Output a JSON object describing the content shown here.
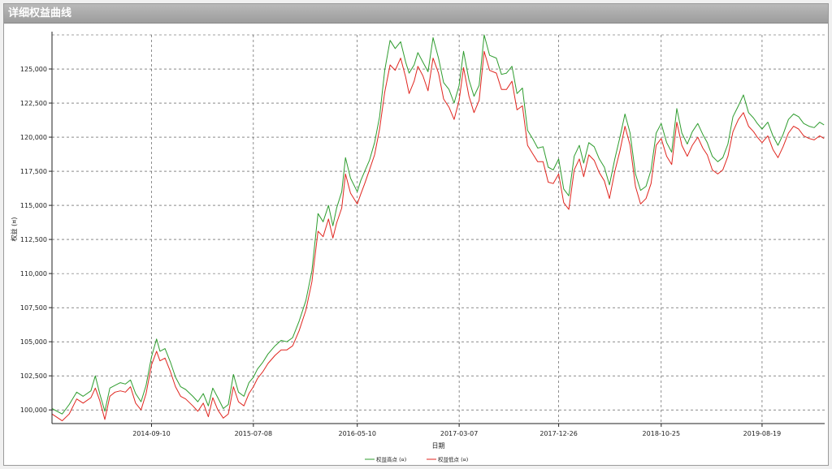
{
  "window": {
    "title": "详细权益曲线"
  },
  "chart_data": {
    "type": "line",
    "title": "",
    "xlabel": "日期",
    "ylabel": "权益 (¤)",
    "x_ticks": [
      "2014-09-10",
      "2015-07-08",
      "2016-05-10",
      "2017-03-07",
      "2017-12-26",
      "2018-10-25",
      "2019-08-19"
    ],
    "x_range": [
      "2013-11-20",
      "2020-02-20"
    ],
    "ylim": [
      99000,
      127500
    ],
    "y_ticks": [
      100000,
      102500,
      105000,
      107500,
      110000,
      112500,
      115000,
      117500,
      120000,
      122500,
      125000
    ],
    "y_tick_labels": [
      "100,000",
      "102,500",
      "105,000",
      "107,500",
      "110,000",
      "112,500",
      "115,000",
      "117,500",
      "120,000",
      "122,500",
      "125,000"
    ],
    "grid": true,
    "legend_position": "bottom-center",
    "series": [
      {
        "name": "权益高点 (¤)",
        "color": "#2e9c2e",
        "x": [
          "2013-11-20",
          "2013-12-20",
          "2014-01-10",
          "2014-02-01",
          "2014-02-20",
          "2014-03-15",
          "2014-03-28",
          "2014-04-10",
          "2014-04-25",
          "2014-05-10",
          "2014-05-25",
          "2014-06-10",
          "2014-06-25",
          "2014-07-10",
          "2014-07-25",
          "2014-08-10",
          "2014-08-25",
          "2014-09-10",
          "2014-09-25",
          "2014-10-05",
          "2014-10-20",
          "2014-11-05",
          "2014-11-20",
          "2014-12-05",
          "2014-12-20",
          "2015-01-10",
          "2015-01-25",
          "2015-02-10",
          "2015-02-25",
          "2015-03-10",
          "2015-03-25",
          "2015-04-10",
          "2015-04-25",
          "2015-05-10",
          "2015-05-25",
          "2015-06-10",
          "2015-06-25",
          "2015-07-08",
          "2015-07-20",
          "2015-08-05",
          "2015-08-20",
          "2015-09-10",
          "2015-09-28",
          "2015-10-15",
          "2015-11-01",
          "2015-11-20",
          "2015-12-10",
          "2015-12-28",
          "2016-01-15",
          "2016-01-30",
          "2016-02-15",
          "2016-02-28",
          "2016-03-10",
          "2016-03-25",
          "2016-04-05",
          "2016-04-20",
          "2016-05-10",
          "2016-05-20",
          "2016-06-01",
          "2016-06-15",
          "2016-06-30",
          "2016-07-15",
          "2016-07-30",
          "2016-08-15",
          "2016-08-30",
          "2016-09-15",
          "2016-09-30",
          "2016-10-10",
          "2016-10-25",
          "2016-11-05",
          "2016-11-20",
          "2016-12-05",
          "2016-12-20",
          "2017-01-05",
          "2017-01-20",
          "2017-02-05",
          "2017-02-20",
          "2017-03-07",
          "2017-03-20",
          "2017-04-05",
          "2017-04-20",
          "2017-05-05",
          "2017-05-20",
          "2017-06-05",
          "2017-06-25",
          "2017-07-10",
          "2017-07-25",
          "2017-08-10",
          "2017-08-25",
          "2017-09-10",
          "2017-09-25",
          "2017-10-10",
          "2017-10-25",
          "2017-11-10",
          "2017-11-25",
          "2017-12-10",
          "2017-12-26",
          "2018-01-10",
          "2018-01-25",
          "2018-02-10",
          "2018-02-25",
          "2018-03-10",
          "2018-03-25",
          "2018-04-10",
          "2018-04-25",
          "2018-05-10",
          "2018-05-25",
          "2018-06-10",
          "2018-06-25",
          "2018-07-10",
          "2018-07-25",
          "2018-08-10",
          "2018-08-25",
          "2018-09-10",
          "2018-09-25",
          "2018-10-10",
          "2018-10-25",
          "2018-11-10",
          "2018-11-25",
          "2018-12-10",
          "2018-12-25",
          "2019-01-10",
          "2019-01-25",
          "2019-02-10",
          "2019-02-25",
          "2019-03-10",
          "2019-03-25",
          "2019-04-10",
          "2019-04-25",
          "2019-05-10",
          "2019-05-25",
          "2019-06-10",
          "2019-06-25",
          "2019-07-10",
          "2019-07-25",
          "2019-08-05",
          "2019-08-19",
          "2019-09-05",
          "2019-09-20",
          "2019-10-05",
          "2019-10-20",
          "2019-11-05",
          "2019-11-20",
          "2019-12-05",
          "2019-12-20",
          "2020-01-05",
          "2020-01-20",
          "2020-02-05",
          "2020-02-18"
        ],
        "values": [
          100100,
          99700,
          100400,
          101300,
          101000,
          101400,
          102500,
          101200,
          99900,
          101600,
          101800,
          102000,
          101900,
          102200,
          101200,
          100600,
          101800,
          103900,
          105200,
          104300,
          104500,
          103500,
          102400,
          101700,
          101500,
          101000,
          100600,
          101200,
          100300,
          101600,
          100900,
          100100,
          100400,
          102600,
          101300,
          101000,
          102000,
          102400,
          103000,
          103500,
          104100,
          104700,
          105100,
          105000,
          105300,
          106500,
          108000,
          110200,
          114400,
          113800,
          115000,
          113500,
          114800,
          116000,
          118500,
          117000,
          116000,
          116800,
          117500,
          118300,
          119600,
          121500,
          124900,
          127100,
          126500,
          127000,
          125500,
          124700,
          125300,
          126200,
          125500,
          124800,
          127300,
          125800,
          124000,
          123500,
          122500,
          123800,
          126300,
          124200,
          123000,
          123800,
          127500,
          126000,
          125800,
          124600,
          124700,
          125200,
          123200,
          123600,
          120500,
          119900,
          119200,
          119300,
          117800,
          117600,
          118400,
          116200,
          115700,
          118600,
          119400,
          118100,
          119600,
          119300,
          118400,
          117800,
          116500,
          118400,
          120000,
          121700,
          120300,
          117300,
          116100,
          116400,
          117600,
          120300,
          121000,
          119600,
          118900,
          122100,
          120300,
          119500,
          120400,
          121000,
          120200,
          119600,
          118600,
          118200,
          118500,
          119500,
          121500,
          122300,
          123100,
          121800,
          121400,
          121000,
          120600,
          121100,
          120100,
          119400,
          120200,
          121300,
          121700,
          121500,
          121000,
          120800,
          120700,
          121100,
          120900
        ]
      },
      {
        "name": "权益低点 (¤)",
        "color": "#e0261f",
        "x": [
          "2013-11-20",
          "2013-12-20",
          "2014-01-10",
          "2014-02-01",
          "2014-02-20",
          "2014-03-15",
          "2014-03-28",
          "2014-04-10",
          "2014-04-25",
          "2014-05-10",
          "2014-05-25",
          "2014-06-10",
          "2014-06-25",
          "2014-07-10",
          "2014-07-25",
          "2014-08-10",
          "2014-08-25",
          "2014-09-10",
          "2014-09-25",
          "2014-10-05",
          "2014-10-20",
          "2014-11-05",
          "2014-11-20",
          "2014-12-05",
          "2014-12-20",
          "2015-01-10",
          "2015-01-25",
          "2015-02-10",
          "2015-02-25",
          "2015-03-10",
          "2015-03-25",
          "2015-04-10",
          "2015-04-25",
          "2015-05-10",
          "2015-05-25",
          "2015-06-10",
          "2015-06-25",
          "2015-07-08",
          "2015-07-20",
          "2015-08-05",
          "2015-08-20",
          "2015-09-10",
          "2015-09-28",
          "2015-10-15",
          "2015-11-01",
          "2015-11-20",
          "2015-12-10",
          "2015-12-28",
          "2016-01-15",
          "2016-01-30",
          "2016-02-15",
          "2016-02-28",
          "2016-03-10",
          "2016-03-25",
          "2016-04-05",
          "2016-04-20",
          "2016-05-10",
          "2016-05-20",
          "2016-06-01",
          "2016-06-15",
          "2016-06-30",
          "2016-07-15",
          "2016-07-30",
          "2016-08-15",
          "2016-08-30",
          "2016-09-15",
          "2016-09-30",
          "2016-10-10",
          "2016-10-25",
          "2016-11-05",
          "2016-11-20",
          "2016-12-05",
          "2016-12-20",
          "2017-01-05",
          "2017-01-20",
          "2017-02-05",
          "2017-02-20",
          "2017-03-07",
          "2017-03-20",
          "2017-04-05",
          "2017-04-20",
          "2017-05-05",
          "2017-05-20",
          "2017-06-05",
          "2017-06-25",
          "2017-07-10",
          "2017-07-25",
          "2017-08-10",
          "2017-08-25",
          "2017-09-10",
          "2017-09-25",
          "2017-10-10",
          "2017-10-25",
          "2017-11-10",
          "2017-11-25",
          "2017-12-10",
          "2017-12-26",
          "2018-01-10",
          "2018-01-25",
          "2018-02-10",
          "2018-02-25",
          "2018-03-10",
          "2018-03-25",
          "2018-04-10",
          "2018-04-25",
          "2018-05-10",
          "2018-05-25",
          "2018-06-10",
          "2018-06-25",
          "2018-07-10",
          "2018-07-25",
          "2018-08-10",
          "2018-08-25",
          "2018-09-10",
          "2018-09-25",
          "2018-10-10",
          "2018-10-25",
          "2018-11-10",
          "2018-11-25",
          "2018-12-10",
          "2018-12-25",
          "2019-01-10",
          "2019-01-25",
          "2019-02-10",
          "2019-02-25",
          "2019-03-10",
          "2019-03-25",
          "2019-04-10",
          "2019-04-25",
          "2019-05-10",
          "2019-05-25",
          "2019-06-10",
          "2019-06-25",
          "2019-07-10",
          "2019-07-25",
          "2019-08-05",
          "2019-08-19",
          "2019-09-05",
          "2019-09-20",
          "2019-10-05",
          "2019-10-20",
          "2019-11-05",
          "2019-11-20",
          "2019-12-05",
          "2019-12-20",
          "2020-01-05",
          "2020-01-20",
          "2020-02-05",
          "2020-02-18"
        ],
        "values": [
          99700,
          99200,
          99700,
          100800,
          100500,
          100900,
          101600,
          100700,
          99300,
          101000,
          101300,
          101400,
          101300,
          101700,
          100500,
          100000,
          101200,
          103300,
          104300,
          103600,
          103800,
          102800,
          101700,
          101000,
          100800,
          100300,
          99900,
          100500,
          99500,
          100900,
          100000,
          99400,
          99700,
          101700,
          100600,
          100300,
          101200,
          101700,
          102300,
          102800,
          103400,
          104000,
          104400,
          104400,
          104700,
          105800,
          107300,
          109400,
          113100,
          112700,
          114000,
          112600,
          113700,
          114800,
          117300,
          115900,
          115100,
          115800,
          116600,
          117600,
          118700,
          120600,
          123300,
          125300,
          124900,
          125800,
          124400,
          123200,
          124100,
          125200,
          124500,
          123400,
          125800,
          124700,
          122800,
          122200,
          121300,
          122700,
          125100,
          123000,
          121800,
          122700,
          126300,
          124900,
          124700,
          123500,
          123500,
          124100,
          122000,
          122300,
          119400,
          118800,
          118200,
          118200,
          116700,
          116600,
          117300,
          115200,
          114700,
          117600,
          118400,
          117100,
          118700,
          118300,
          117400,
          116800,
          115500,
          117500,
          119000,
          120800,
          119400,
          116400,
          115100,
          115500,
          116600,
          119400,
          119900,
          118600,
          118000,
          121100,
          119400,
          118600,
          119400,
          120000,
          119200,
          118700,
          117600,
          117300,
          117600,
          118600,
          120400,
          121300,
          121800,
          120800,
          120400,
          120000,
          119600,
          120100,
          119100,
          118500,
          119300,
          120300,
          120800,
          120600,
          120100,
          119900,
          119800,
          120100,
          119900
        ]
      }
    ]
  }
}
